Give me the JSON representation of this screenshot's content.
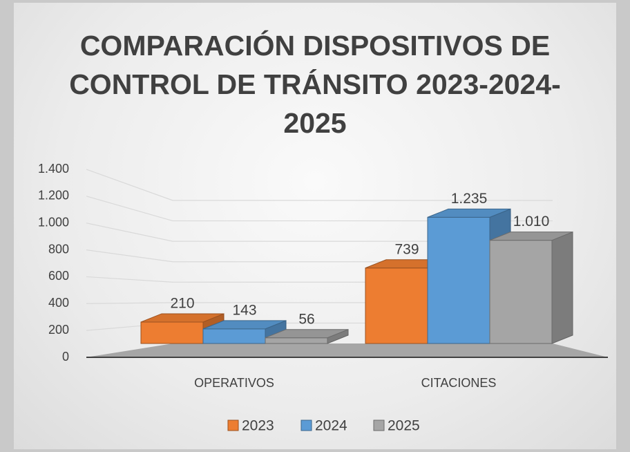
{
  "chart_data": {
    "type": "bar3d",
    "title": "COMPARACIÓN DISPOSITIVOS DE CONTROL DE TRÁNSITO 2023-2024-2025",
    "categories": [
      "OPERATIVOS",
      "CITACIONES"
    ],
    "series": [
      {
        "name": "2023",
        "color": "#ed7d31",
        "values": [
          210,
          739
        ],
        "value_labels": [
          "210",
          "739"
        ]
      },
      {
        "name": "2024",
        "color": "#5b9bd5",
        "values": [
          143,
          1235
        ],
        "value_labels": [
          "143",
          "1.235"
        ]
      },
      {
        "name": "2025",
        "color": "#a5a5a5",
        "values": [
          56,
          1010
        ],
        "value_labels": [
          "56",
          "1.010"
        ]
      }
    ],
    "ylim": [
      0,
      1400
    ],
    "yticks": [
      0,
      200,
      400,
      600,
      800,
      {
        "value": 1000,
        "label": "1.000"
      },
      {
        "value": 1200,
        "label": "1.200"
      },
      {
        "value": 1400,
        "label": "1.400"
      }
    ],
    "grid": true,
    "legend": "bottom"
  }
}
